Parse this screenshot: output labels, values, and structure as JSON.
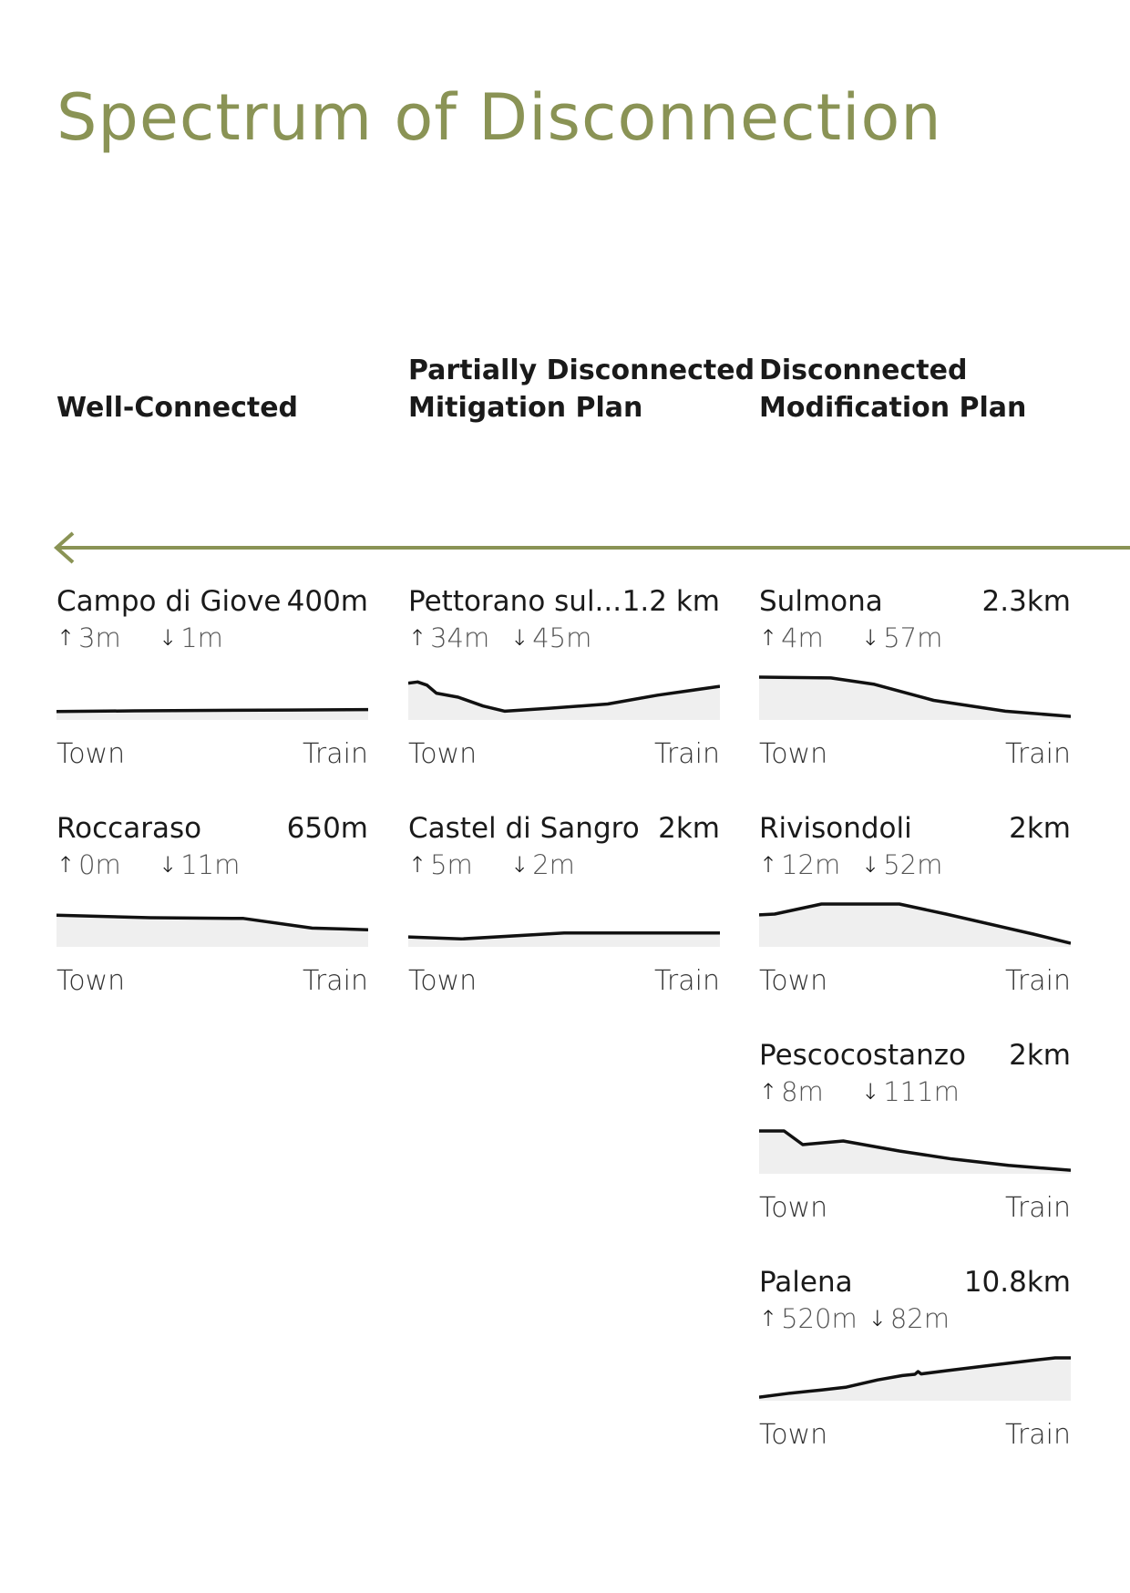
{
  "title": "Spectrum of Disconnection",
  "colors": {
    "accent": "#8a9355",
    "line": "#111111",
    "fill": "#efefef"
  },
  "columns": [
    {
      "lines": [
        "Well-Connected"
      ]
    },
    {
      "lines": [
        "Partially Disconnected",
        "Mitigation Plan"
      ]
    },
    {
      "lines": [
        "Disconnected",
        "Modification Plan"
      ]
    }
  ],
  "chart_data": {
    "type": "area",
    "title": "Spectrum of Disconnection",
    "x_start_label": "Town",
    "x_end_label": "Train",
    "up_icon": "arrow-up-icon",
    "down_icon": "arrow-down-icon",
    "towns": [
      {
        "column": 0,
        "name": "Campo di Giove",
        "distance": "400m",
        "ascent": "3m",
        "descent": "1m",
        "profile": [
          [
            0,
            0.14
          ],
          [
            0.25,
            0.16
          ],
          [
            0.5,
            0.17
          ],
          [
            0.75,
            0.18
          ],
          [
            1,
            0.19
          ]
        ]
      },
      {
        "column": 0,
        "name": "Roccaraso",
        "distance": "650m",
        "ascent": "0m",
        "descent": "11m",
        "profile": [
          [
            0,
            0.72
          ],
          [
            0.3,
            0.66
          ],
          [
            0.6,
            0.64
          ],
          [
            0.82,
            0.4
          ],
          [
            1,
            0.36
          ]
        ]
      },
      {
        "column": 1,
        "name": "Pettorano sul...",
        "distance": "1.2 km",
        "ascent": "34m",
        "descent": "45m",
        "profile": [
          [
            0,
            0.85
          ],
          [
            0.03,
            0.88
          ],
          [
            0.06,
            0.8
          ],
          [
            0.09,
            0.6
          ],
          [
            0.16,
            0.5
          ],
          [
            0.24,
            0.28
          ],
          [
            0.31,
            0.15
          ],
          [
            0.45,
            0.22
          ],
          [
            0.64,
            0.33
          ],
          [
            0.8,
            0.55
          ],
          [
            1,
            0.77
          ]
        ]
      },
      {
        "column": 1,
        "name": "Castel di Sangro",
        "distance": "2km",
        "ascent": "5m",
        "descent": "2m",
        "profile": [
          [
            0,
            0.18
          ],
          [
            0.17,
            0.13
          ],
          [
            0.5,
            0.28
          ],
          [
            0.75,
            0.28
          ],
          [
            1,
            0.28
          ]
        ]
      },
      {
        "column": 2,
        "name": "Sulmona",
        "distance": "2.3km",
        "ascent": "4m",
        "descent": "57m",
        "profile": [
          [
            0,
            1.0
          ],
          [
            0.23,
            0.98
          ],
          [
            0.37,
            0.82
          ],
          [
            0.56,
            0.42
          ],
          [
            0.79,
            0.15
          ],
          [
            1,
            0.02
          ]
        ]
      },
      {
        "column": 2,
        "name": "Rivisondoli",
        "distance": "2km",
        "ascent": "12m",
        "descent": "52m",
        "profile": [
          [
            0,
            0.73
          ],
          [
            0.05,
            0.75
          ],
          [
            0.2,
            1.0
          ],
          [
            0.45,
            1.0
          ],
          [
            0.6,
            0.75
          ],
          [
            0.88,
            0.25
          ],
          [
            1,
            0.02
          ]
        ]
      },
      {
        "column": 2,
        "name": "Pescocostanzo",
        "distance": "2km",
        "ascent": "8m",
        "descent": "111m",
        "profile": [
          [
            0,
            1.0
          ],
          [
            0.08,
            1.0
          ],
          [
            0.14,
            0.66
          ],
          [
            0.27,
            0.75
          ],
          [
            0.45,
            0.5
          ],
          [
            0.62,
            0.3
          ],
          [
            0.8,
            0.14
          ],
          [
            1,
            0.02
          ]
        ]
      },
      {
        "column": 2,
        "name": "Palena",
        "distance": "10.8km",
        "ascent": "520m",
        "descent": "82m",
        "profile": [
          [
            0,
            0.02
          ],
          [
            0.1,
            0.12
          ],
          [
            0.2,
            0.2
          ],
          [
            0.28,
            0.27
          ],
          [
            0.38,
            0.45
          ],
          [
            0.46,
            0.56
          ],
          [
            0.5,
            0.59
          ],
          [
            0.51,
            0.66
          ],
          [
            0.52,
            0.6
          ],
          [
            0.6,
            0.68
          ],
          [
            0.75,
            0.82
          ],
          [
            0.88,
            0.94
          ],
          [
            0.95,
            1.0
          ],
          [
            1,
            1.0
          ]
        ]
      }
    ]
  }
}
